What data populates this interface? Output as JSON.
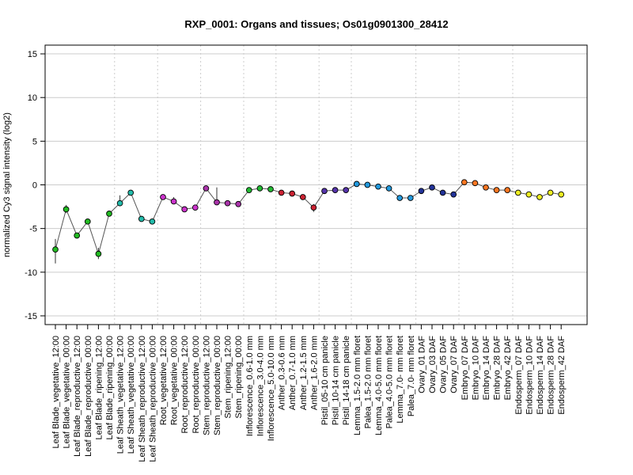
{
  "chart_data": {
    "type": "scatter",
    "title": "RXP_0001: Organs and tissues; Os01g0901300_28412",
    "ylabel": "normalized Cy3 signal intensity (log2)",
    "xlabel": "",
    "ylim": [
      -16,
      16
    ],
    "yticks": [
      15,
      10,
      5,
      0,
      -5,
      -10,
      -15
    ],
    "grid": "horizontal solid at y ticks; vertical dotted group separators",
    "legend": "none",
    "categories": [
      "Leaf Blade_vegetative_12:00",
      "Leaf Blade_vegetative_00:00",
      "Leaf Blade_reproductive_12:00",
      "Leaf Blade_reproductive_00:00",
      "Leaf Blade_ripening_12:00",
      "Leaf Blade_ripening_00:00",
      "Leaf Sheath_vegetative_12:00",
      "Leaf Sheath_vegetative_00:00",
      "Leaf Sheath_reproductive_12:00",
      "Leaf Sheath_reproductive_00:00",
      "Root_vegetative_12:00",
      "Root_vegetative_00:00",
      "Root_reproductive_12:00",
      "Root_reproductive_00:00",
      "Stem_reproductive_12:00",
      "Stem_reproductive_00:00",
      "Stem_ripening_12:00",
      "Stem_ripening_00:00",
      "Inflorescence_0.6-1.0 mm",
      "Inflorescence_3.0-4.0 mm",
      "Inflorescence_5.0-10.0 mm",
      "Anther_0.3-0.6 mm",
      "Anther_0.7-1.0 mm",
      "Anther_1.2-1.5 mm",
      "Anther_1.6-2.0 mm",
      "Pistil_05-10 cm panicle",
      "Pistil_10-14 cm panicle",
      "Pistil_14-18 cm panicle",
      "Lemma_1.5-2.0 mm floret",
      "Palea_1.5-2.0 mm floret",
      "Lemma_4.0-5.0 mm floret",
      "Palea_4.0-5.0 mm floret",
      "Lemma_7.0- mm floret",
      "Palea_7.0- mm floret",
      "Ovary_01 DAF",
      "Ovary_03 DAF",
      "Ovary_05 DAF",
      "Ovary_07 DAF",
      "Embryo_07 DAF",
      "Embryo_10 DAF",
      "Embryo_14 DAF",
      "Embryo_28 DAF",
      "Embryo_42 DAF",
      "Endosperm_07 DAF",
      "Endosperm_10 DAF",
      "Endosperm_14 DAF",
      "Endosperm_28 DAF",
      "Endosperm_42 DAF"
    ],
    "values": [
      -7.4,
      -2.8,
      -5.8,
      -4.2,
      -7.9,
      -3.3,
      -2.1,
      -0.9,
      -3.9,
      -4.2,
      -1.4,
      -1.9,
      -2.8,
      -2.6,
      -0.4,
      -2.0,
      -2.1,
      -2.2,
      -0.6,
      -0.4,
      -0.5,
      -0.9,
      -1.0,
      -1.4,
      -2.6,
      -0.7,
      -0.6,
      -0.6,
      0.1,
      0.0,
      -0.2,
      -0.4,
      -1.5,
      -1.5,
      -0.7,
      -0.3,
      -0.9,
      -1.1,
      0.3,
      0.2,
      -0.3,
      -0.6,
      -0.6,
      -0.9,
      -1.1,
      -1.4,
      -0.9,
      -1.1
    ],
    "error_bars": [
      {
        "index": 0,
        "low": -9.0,
        "high": -6.2
      },
      {
        "index": 1,
        "low": -3.2,
        "high": -2.3
      },
      {
        "index": 4,
        "low": -8.5,
        "high": -7.2
      },
      {
        "index": 6,
        "low": -2.4,
        "high": -1.2
      },
      {
        "index": 11,
        "low": -2.2,
        "high": -1.4
      },
      {
        "index": 15,
        "low": -2.3,
        "high": -0.3
      },
      {
        "index": 24,
        "low": -3.1,
        "high": -2.2
      }
    ],
    "group_sizes": [
      6,
      4,
      4,
      4,
      3,
      4,
      3,
      6,
      4,
      5,
      5
    ],
    "point_colors": [
      "#22bb22",
      "#22bb22",
      "#22bb22",
      "#22bb22",
      "#22bb22",
      "#22bb22",
      "#22bbaa",
      "#22bbaa",
      "#22bbaa",
      "#22bbaa",
      "#cc33cc",
      "#cc33cc",
      "#cc33cc",
      "#cc33cc",
      "#aa33aa",
      "#aa33aa",
      "#aa33aa",
      "#aa33aa",
      "#22bb33",
      "#22bb33",
      "#22bb33",
      "#cc2233",
      "#cc2233",
      "#cc2233",
      "#cc2233",
      "#5533aa",
      "#5533aa",
      "#5533aa",
      "#2299dd",
      "#2299dd",
      "#2299dd",
      "#2299dd",
      "#2299dd",
      "#2299dd",
      "#223399",
      "#223399",
      "#223399",
      "#223399",
      "#ff7722",
      "#ff7722",
      "#ff7722",
      "#ff7722",
      "#ff7722",
      "#eeee22",
      "#eeee22",
      "#eeee22",
      "#eeee22",
      "#eeee22"
    ]
  }
}
